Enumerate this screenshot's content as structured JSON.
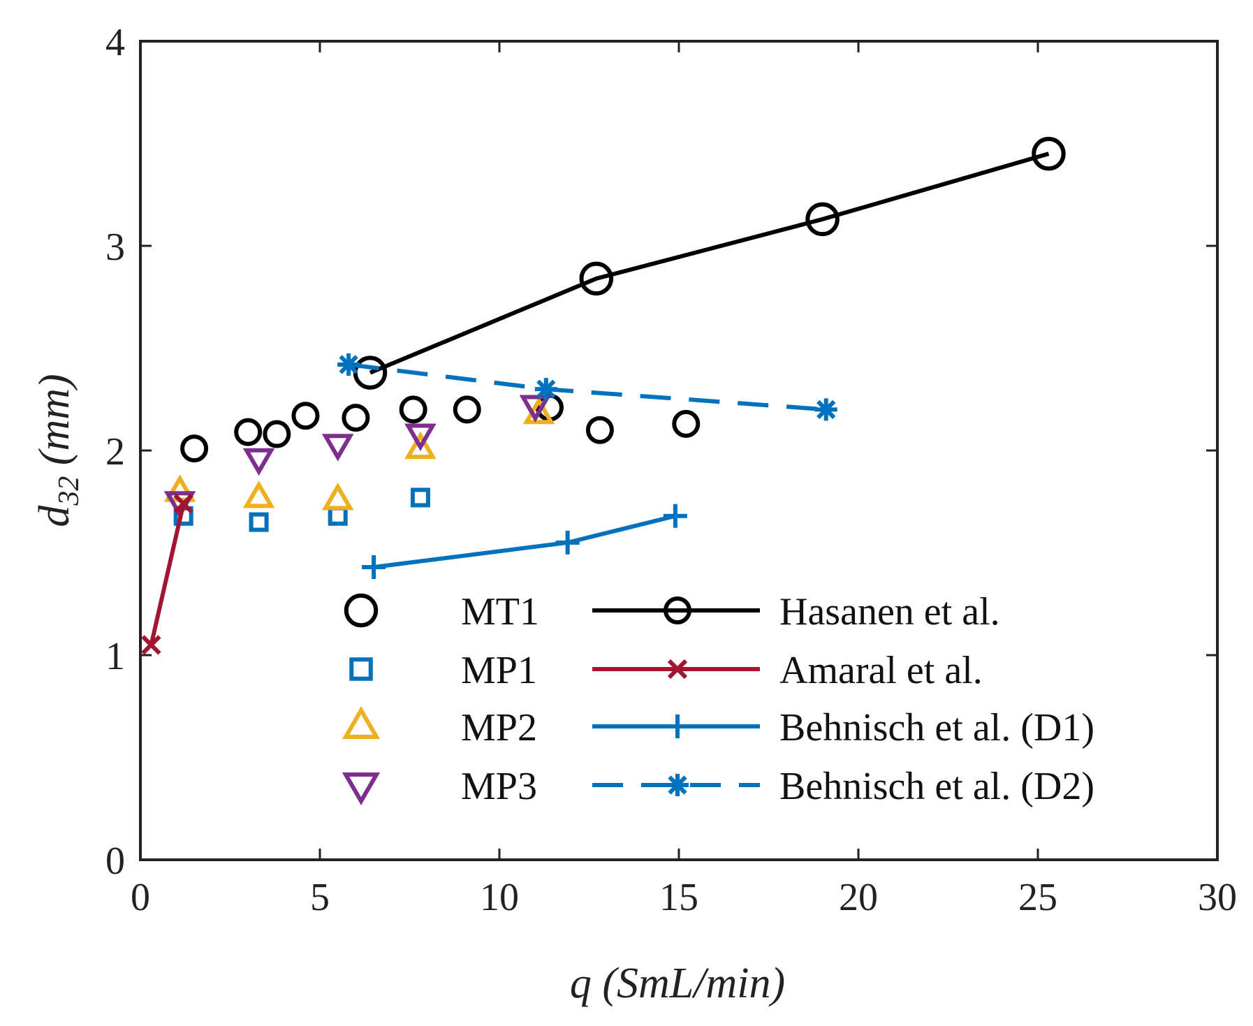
{
  "chart_data": {
    "type": "scatter",
    "xlabel": "q (SmL/min)",
    "ylabel": "d32 (mm)",
    "ylabel_main": "d",
    "ylabel_sub": "32",
    "ylabel_unit": " (mm)",
    "xlim": [
      0,
      30
    ],
    "ylim": [
      0,
      4
    ],
    "xticks": [
      0,
      5,
      10,
      15,
      20,
      25,
      30
    ],
    "yticks": [
      0,
      1,
      2,
      3,
      4
    ],
    "grid": false,
    "legend_position": "bottom-right",
    "series": [
      {
        "name": "MT1",
        "kind": "markers",
        "marker": "circle",
        "color": "#000000",
        "points": [
          [
            1.5,
            2.01
          ],
          [
            3.0,
            2.09
          ],
          [
            3.8,
            2.08
          ],
          [
            4.6,
            2.17
          ],
          [
            6.0,
            2.16
          ],
          [
            7.6,
            2.2
          ],
          [
            9.1,
            2.2
          ],
          [
            11.4,
            2.21
          ],
          [
            12.8,
            2.1
          ],
          [
            15.2,
            2.13
          ]
        ]
      },
      {
        "name": "MP1",
        "kind": "markers",
        "marker": "square",
        "color": "#0072BD",
        "points": [
          [
            1.2,
            1.68
          ],
          [
            3.3,
            1.65
          ],
          [
            5.5,
            1.68
          ],
          [
            7.8,
            1.77
          ]
        ]
      },
      {
        "name": "MP2",
        "kind": "markers",
        "marker": "triangle-up",
        "color": "#EDB120",
        "points": [
          [
            1.1,
            1.8
          ],
          [
            3.3,
            1.77
          ],
          [
            5.5,
            1.76
          ],
          [
            7.8,
            2.01
          ],
          [
            11.1,
            2.18
          ]
        ]
      },
      {
        "name": "MP3",
        "kind": "markers",
        "marker": "triangle-down",
        "color": "#7E2F8E",
        "points": [
          [
            1.1,
            1.75
          ],
          [
            3.3,
            1.96
          ],
          [
            5.5,
            2.03
          ],
          [
            7.8,
            2.08
          ],
          [
            11.0,
            2.22
          ]
        ]
      },
      {
        "name": "Hasanen et al.",
        "kind": "line",
        "marker": "circle",
        "line_style": "solid",
        "color": "#000000",
        "points": [
          [
            6.4,
            2.38
          ],
          [
            12.7,
            2.84
          ],
          [
            19.0,
            3.13
          ],
          [
            25.3,
            3.45
          ]
        ]
      },
      {
        "name": "Amaral et al.",
        "kind": "line",
        "marker": "x",
        "line_style": "solid",
        "color": "#A2142F",
        "points": [
          [
            0.3,
            1.05
          ],
          [
            1.2,
            1.74
          ]
        ]
      },
      {
        "name": "Behnisch et al. (D1)",
        "kind": "line",
        "marker": "plus",
        "line_style": "solid",
        "color": "#0072BD",
        "points": [
          [
            6.5,
            1.43
          ],
          [
            11.9,
            1.55
          ],
          [
            14.9,
            1.68
          ]
        ]
      },
      {
        "name": "Behnisch et al. (D2)",
        "kind": "line",
        "marker": "asterisk",
        "line_style": "dashed",
        "color": "#0072BD",
        "points": [
          [
            5.8,
            2.42
          ],
          [
            11.3,
            2.3
          ],
          [
            19.1,
            2.2
          ]
        ]
      }
    ]
  }
}
